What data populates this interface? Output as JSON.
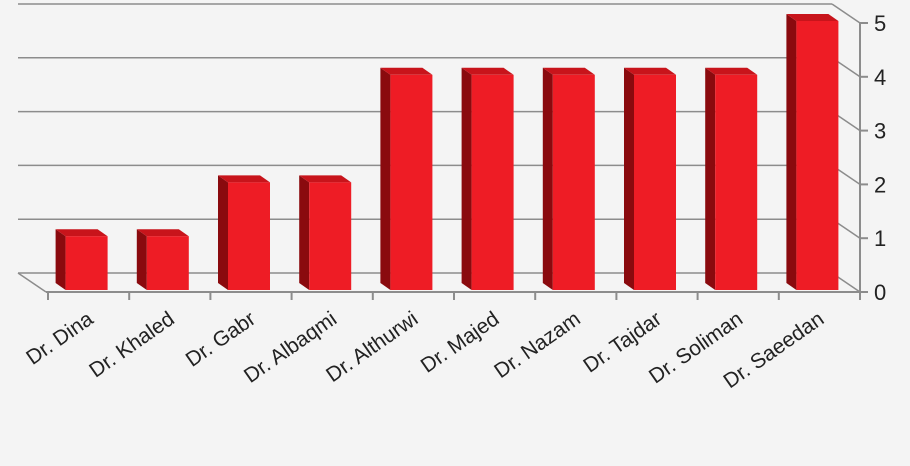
{
  "chart_data": {
    "type": "bar",
    "categories": [
      "Dr. Dina",
      "Dr. Khaled",
      "Dr. Gabr",
      "Dr. Albaqmi",
      "Dr. Althurwi",
      "Dr. Majed",
      "Dr. Nazam",
      "Dr. Tajdar",
      "Dr. Soliman",
      "Dr. Saeedan"
    ],
    "values": [
      1,
      1,
      2,
      2,
      4,
      4,
      4,
      4,
      4,
      5
    ],
    "ylim": [
      0,
      5
    ],
    "yticks": [
      "0",
      "1",
      "2",
      "3",
      "4",
      "5"
    ],
    "grid": true,
    "bar_style": "3d",
    "colors": {
      "bar_front": "#ee1c25",
      "bar_side": "#8a0a0e",
      "bar_top": "#c8141b",
      "grid": "#8c8c8c",
      "axis": "#8c8c8c",
      "background": "#f4f4f4"
    }
  }
}
